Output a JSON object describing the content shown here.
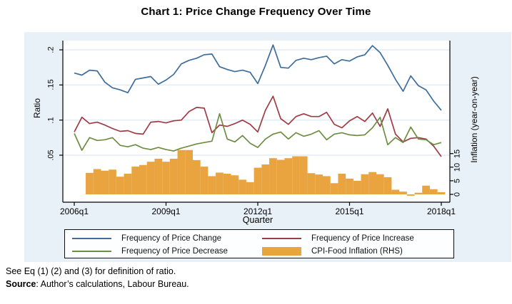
{
  "title": "Chart 1: Price Change Frequency Over Time",
  "notes": {
    "definition": "See Eq (1) (2) and (3) for definition of ratio.",
    "source_label": "Source",
    "source_rest": ": Author’s calculations, Labour Bureau."
  },
  "colors": {
    "figure_background": "#e9f1f8",
    "plot_background": "#ffffff",
    "grid": "#dce8f2",
    "axis": "#000000",
    "price_change": "#3e6d9c",
    "price_increase": "#a03b44",
    "price_decrease": "#6d8d42",
    "cpi_bars": "#e9a33f"
  },
  "chart_data": {
    "type": "line+bar",
    "title": "Chart 1: Price Change Frequency Over Time",
    "xlabel": "Quarter",
    "grid": "horizontal",
    "legend_position": "bottom",
    "x_axis": {
      "tick_labels": [
        "2006q1",
        "2009q1",
        "2012q1",
        "2015q1",
        "2018q1"
      ],
      "tick_indices": [
        0,
        12,
        24,
        36,
        48
      ]
    },
    "left_axis": {
      "label": "Ratio",
      "tick_labels": [
        ".05",
        ".1",
        ".15",
        ".2"
      ],
      "tick_values": [
        0.05,
        0.1,
        0.15,
        0.2
      ]
    },
    "right_axis": {
      "label": "Inflation (year-on-year)",
      "tick_labels": [
        "0",
        "5",
        "10",
        "15"
      ],
      "tick_values": [
        0,
        5,
        10,
        15
      ]
    },
    "categories": [
      "2006q1",
      "2006q2",
      "2006q3",
      "2006q4",
      "2007q1",
      "2007q2",
      "2007q3",
      "2007q4",
      "2008q1",
      "2008q2",
      "2008q3",
      "2008q4",
      "2009q1",
      "2009q2",
      "2009q3",
      "2009q4",
      "2010q1",
      "2010q2",
      "2010q3",
      "2010q4",
      "2011q1",
      "2011q2",
      "2011q3",
      "2011q4",
      "2012q1",
      "2012q2",
      "2012q3",
      "2012q4",
      "2013q1",
      "2013q2",
      "2013q3",
      "2013q4",
      "2014q1",
      "2014q2",
      "2014q3",
      "2014q4",
      "2015q1",
      "2015q2",
      "2015q3",
      "2015q4",
      "2016q1",
      "2016q2",
      "2016q3",
      "2016q4",
      "2017q1",
      "2017q2",
      "2017q3",
      "2017q4",
      "2018q1"
    ],
    "series": [
      {
        "name": "Frequency of Price Change",
        "type": "line",
        "axis": "left",
        "color": "#3e6d9c",
        "values": [
          0.167,
          0.164,
          0.171,
          0.17,
          0.154,
          0.146,
          0.143,
          0.139,
          0.158,
          0.16,
          0.162,
          0.151,
          0.157,
          0.165,
          0.18,
          0.185,
          0.188,
          0.193,
          0.194,
          0.176,
          0.172,
          0.169,
          0.171,
          0.168,
          0.152,
          0.178,
          0.207,
          0.175,
          0.174,
          0.185,
          0.188,
          0.186,
          0.189,
          0.191,
          0.18,
          0.186,
          0.184,
          0.19,
          0.193,
          0.206,
          0.196,
          0.178,
          0.158,
          0.141,
          0.163,
          0.149,
          0.143,
          0.127,
          0.114
        ]
      },
      {
        "name": "Frequency of Price Increase",
        "type": "line",
        "axis": "left",
        "color": "#a03b44",
        "values": [
          0.083,
          0.104,
          0.095,
          0.097,
          0.093,
          0.088,
          0.084,
          0.085,
          0.081,
          0.08,
          0.097,
          0.098,
          0.096,
          0.099,
          0.1,
          0.112,
          0.118,
          0.117,
          0.082,
          0.093,
          0.091,
          0.095,
          0.1,
          0.094,
          0.083,
          0.114,
          0.134,
          0.102,
          0.094,
          0.105,
          0.109,
          0.105,
          0.105,
          0.111,
          0.094,
          0.089,
          0.099,
          0.105,
          0.098,
          0.11,
          0.091,
          0.116,
          0.08,
          0.069,
          0.074,
          0.075,
          0.073,
          0.063,
          0.048
        ]
      },
      {
        "name": "Frequency of Price Decrease",
        "type": "line",
        "axis": "left",
        "color": "#6d8d42",
        "values": [
          0.081,
          0.057,
          0.075,
          0.071,
          0.072,
          0.075,
          0.064,
          0.062,
          0.065,
          0.06,
          0.058,
          0.061,
          0.058,
          0.056,
          0.06,
          0.063,
          0.066,
          0.068,
          0.07,
          0.109,
          0.073,
          0.069,
          0.078,
          0.067,
          0.061,
          0.073,
          0.08,
          0.083,
          0.073,
          0.082,
          0.077,
          0.08,
          0.085,
          0.072,
          0.08,
          0.082,
          0.079,
          0.078,
          0.079,
          0.089,
          0.104,
          0.065,
          0.075,
          0.068,
          0.09,
          0.073,
          0.072,
          0.065,
          0.068
        ]
      },
      {
        "name": "CPI-Food Inflation (RHS)",
        "type": "bar",
        "axis": "right",
        "color": "#e9a33f",
        "values": [
          null,
          null,
          7.9,
          9.3,
          8.7,
          9.1,
          6.5,
          7.6,
          10.2,
          10.8,
          12.0,
          13.1,
          12.0,
          13.1,
          16.3,
          16.3,
          12.6,
          10.2,
          6.7,
          8.0,
          7.6,
          7.0,
          5.4,
          4.5,
          9.8,
          11.0,
          13.3,
          12.7,
          13.3,
          14.0,
          14.0,
          7.8,
          7.3,
          6.7,
          4.1,
          7.6,
          5.8,
          5.0,
          7.4,
          8.2,
          7.4,
          6.3,
          1.7,
          1.0,
          -0.5,
          0.6,
          3.2,
          1.9,
          0.8
        ]
      }
    ],
    "legend": [
      {
        "label": "Frequency of Price Change",
        "swatch": "line",
        "color": "#3e6d9c"
      },
      {
        "label": "Frequency of Price Increase",
        "swatch": "line",
        "color": "#a03b44"
      },
      {
        "label": "Frequency of Price Decrease",
        "swatch": "line",
        "color": "#6d8d42"
      },
      {
        "label": "CPI-Food Inflation (RHS)",
        "swatch": "bar",
        "color": "#e9a33f"
      }
    ]
  }
}
